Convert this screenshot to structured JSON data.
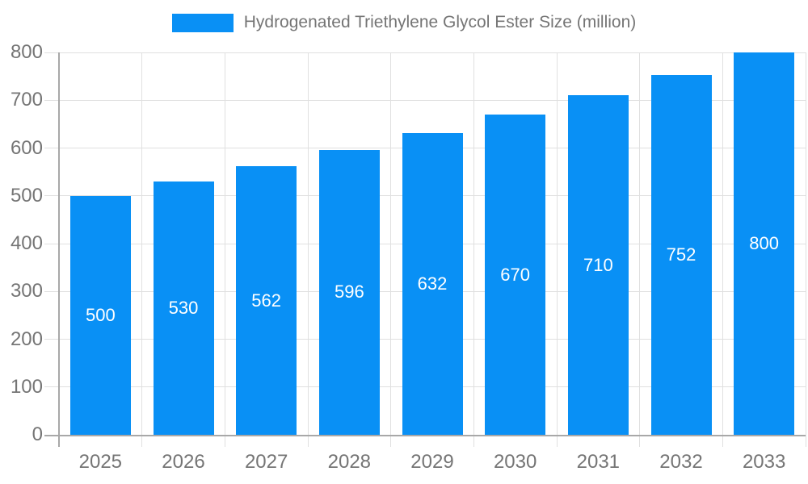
{
  "legend": {
    "label": "Hydrogenated Triethylene Glycol Ester Size (million)"
  },
  "colors": {
    "bar": "#0990f5",
    "grid": "#e0e0e0",
    "axis": "#a8a8a8",
    "tick_text": "#757575",
    "value_label": "#ffffff",
    "background": "#ffffff"
  },
  "chart_data": {
    "type": "bar",
    "title": "Hydrogenated Triethylene Glycol Ester Size (million)",
    "categories": [
      "2025",
      "2026",
      "2027",
      "2028",
      "2029",
      "2030",
      "2031",
      "2032",
      "2033"
    ],
    "values": [
      500,
      530,
      562,
      596,
      632,
      670,
      710,
      752,
      800
    ],
    "series": [
      {
        "name": "Hydrogenated Triethylene Glycol Ester Size (million)",
        "values": [
          500,
          530,
          562,
          596,
          632,
          670,
          710,
          752,
          800
        ]
      }
    ],
    "value_labels_shown": true,
    "xlabel": "",
    "ylabel": "",
    "ylim": [
      0,
      800
    ],
    "yticks": [
      0,
      100,
      200,
      300,
      400,
      500,
      600,
      700,
      800
    ],
    "grid": true,
    "legend_position": "top"
  }
}
